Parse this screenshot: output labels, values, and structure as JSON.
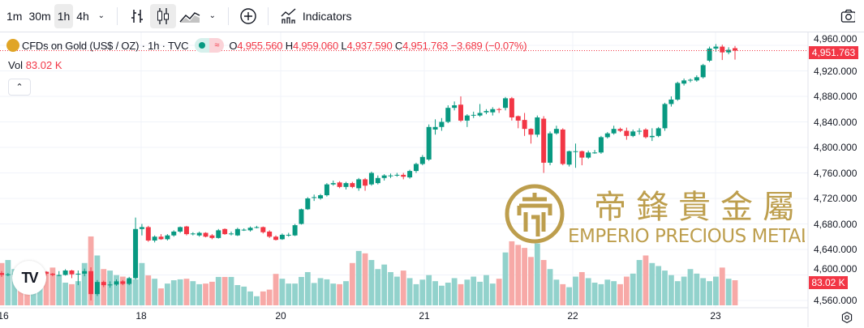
{
  "toolbar": {
    "intervals": [
      "1m",
      "30m",
      "1h",
      "4h"
    ],
    "active_interval": "1h",
    "indicators_label": "Indicators"
  },
  "legend": {
    "symbol": "CFDs on Gold (US$ / OZ) · 1h · TVC",
    "o_label": "O",
    "open": "4,955.560",
    "h_label": "H",
    "high": "4,959.060",
    "l_label": "L",
    "low": "4,937.590",
    "c_label": "C",
    "close": "4,951.763",
    "change": "−3.689 (−0.07%)"
  },
  "volume": {
    "label": "Vol",
    "value": "83.02 K"
  },
  "price_tag": "4,951.763",
  "volume_tag": "83.02 K",
  "y_axis": [
    "4,960.000",
    "4,920.000",
    "4,880.000",
    "4,840.000",
    "4,800.000",
    "4,760.000",
    "4,720.000",
    "4,680.000",
    "4,640.000",
    "4,600.000",
    "4,560.000"
  ],
  "x_axis": [
    "16",
    "18",
    "20",
    "21",
    "22",
    "23"
  ],
  "watermark": {
    "cn": "帝鋒貴金屬",
    "en": "EMPERIO PRECIOUS METALS"
  },
  "colors": {
    "up": "#089981",
    "down": "#f23645",
    "vol_up": "#92d2cc",
    "vol_down": "#f7a9a7",
    "gold": "#b8963e"
  },
  "chart_data": {
    "type": "candlestick",
    "title": "CFDs on Gold (US$ / OZ) · 1h · TVC",
    "ylim": [
      4552,
      4968
    ],
    "candles_ohlc": [
      [
        4603,
        4606,
        4597,
        4600
      ],
      [
        4600,
        4603,
        4598,
        4601
      ],
      [
        4601,
        4604,
        4599,
        4602
      ],
      [
        4602,
        4604,
        4597,
        4600
      ],
      [
        4600,
        4602,
        4595,
        4598
      ],
      [
        4598,
        4606,
        4597,
        4603
      ],
      [
        4603,
        4608,
        4601,
        4605
      ],
      [
        4605,
        4606,
        4599,
        4602
      ],
      [
        4602,
        4603,
        4598,
        4600
      ],
      [
        4600,
        4606,
        4598,
        4600
      ],
      [
        4600,
        4609,
        4599,
        4607
      ],
      [
        4607,
        4608,
        4595,
        4601
      ],
      [
        4601,
        4607,
        4584,
        4602
      ],
      [
        4602,
        4610,
        4598,
        4606
      ],
      [
        4606,
        4612,
        4560,
        4570
      ],
      [
        4570,
        4592,
        4567,
        4589
      ],
      [
        4589,
        4591,
        4581,
        4584
      ],
      [
        4584,
        4590,
        4580,
        4585
      ],
      [
        4585,
        4593,
        4583,
        4590
      ],
      [
        4590,
        4592,
        4584,
        4586
      ],
      [
        4586,
        4597,
        4584,
        4595
      ],
      [
        4595,
        4690,
        4593,
        4672
      ],
      [
        4672,
        4680,
        4662,
        4675
      ],
      [
        4675,
        4677,
        4652,
        4654
      ],
      [
        4654,
        4662,
        4651,
        4660
      ],
      [
        4660,
        4664,
        4655,
        4656
      ],
      [
        4656,
        4664,
        4654,
        4662
      ],
      [
        4662,
        4670,
        4660,
        4668
      ],
      [
        4668,
        4676,
        4666,
        4675
      ],
      [
        4676,
        4677,
        4662,
        4664
      ],
      [
        4664,
        4667,
        4662,
        4665
      ],
      [
        4662,
        4668,
        4660,
        4666
      ],
      [
        4666,
        4667,
        4659,
        4660
      ],
      [
        4662,
        4664,
        4656,
        4658
      ],
      [
        4658,
        4672,
        4657,
        4670
      ],
      [
        4672,
        4673,
        4663,
        4664
      ],
      [
        4664,
        4668,
        4662,
        4665
      ],
      [
        4662,
        4674,
        4661,
        4672
      ],
      [
        4670,
        4673,
        4669,
        4671
      ],
      [
        4670,
        4676,
        4668,
        4674
      ],
      [
        4674,
        4677,
        4673,
        4675
      ],
      [
        4675,
        4676,
        4665,
        4667
      ],
      [
        4668,
        4670,
        4658,
        4660
      ],
      [
        4660,
        4662,
        4654,
        4655
      ],
      [
        4656,
        4665,
        4655,
        4663
      ],
      [
        4663,
        4666,
        4660,
        4663
      ],
      [
        4662,
        4680,
        4661,
        4678
      ],
      [
        4680,
        4704,
        4679,
        4703
      ],
      [
        4703,
        4722,
        4702,
        4720
      ],
      [
        4722,
        4726,
        4716,
        4722
      ],
      [
        4720,
        4727,
        4718,
        4725
      ],
      [
        4725,
        4744,
        4723,
        4742
      ],
      [
        4742,
        4748,
        4740,
        4744
      ],
      [
        4745,
        4747,
        4736,
        4738
      ],
      [
        4738,
        4746,
        4734,
        4744
      ],
      [
        4744,
        4746,
        4736,
        4738
      ],
      [
        4736,
        4752,
        4732,
        4750
      ],
      [
        4750,
        4752,
        4732,
        4740
      ],
      [
        4742,
        4762,
        4740,
        4760
      ],
      [
        4744,
        4756,
        4742,
        4752
      ],
      [
        4752,
        4758,
        4748,
        4756
      ],
      [
        4756,
        4759,
        4752,
        4756
      ],
      [
        4756,
        4760,
        4754,
        4757
      ],
      [
        4757,
        4760,
        4750,
        4754
      ],
      [
        4753,
        4765,
        4751,
        4763
      ],
      [
        4763,
        4776,
        4760,
        4774
      ],
      [
        4774,
        4788,
        4772,
        4785
      ],
      [
        4781,
        4836,
        4779,
        4832
      ],
      [
        4828,
        4844,
        4820,
        4832
      ],
      [
        4832,
        4846,
        4826,
        4840
      ],
      [
        4840,
        4866,
        4838,
        4862
      ],
      [
        4862,
        4872,
        4858,
        4866
      ],
      [
        4867,
        4880,
        4840,
        4842
      ],
      [
        4842,
        4852,
        4832,
        4850
      ],
      [
        4851,
        4856,
        4846,
        4851
      ],
      [
        4850,
        4868,
        4848,
        4854
      ],
      [
        4855,
        4860,
        4852,
        4857
      ],
      [
        4855,
        4863,
        4850,
        4860
      ],
      [
        4860,
        4862,
        4854,
        4859
      ],
      [
        4862,
        4879,
        4858,
        4877
      ],
      [
        4877,
        4879,
        4842,
        4847
      ],
      [
        4849,
        4850,
        4830,
        4842
      ],
      [
        4843,
        4854,
        4818,
        4829
      ],
      [
        4829,
        4830,
        4806,
        4820
      ],
      [
        4820,
        4850,
        4816,
        4847
      ],
      [
        4845,
        4849,
        4760,
        4776
      ],
      [
        4776,
        4825,
        4772,
        4822
      ],
      [
        4822,
        4834,
        4820,
        4829
      ],
      [
        4828,
        4830,
        4772,
        4774
      ],
      [
        4773,
        4795,
        4770,
        4794
      ],
      [
        4794,
        4806,
        4768,
        4794
      ],
      [
        4794,
        4795,
        4772,
        4784
      ],
      [
        4784,
        4795,
        4782,
        4792
      ],
      [
        4792,
        4796,
        4790,
        4792
      ],
      [
        4792,
        4818,
        4790,
        4816
      ],
      [
        4816,
        4824,
        4814,
        4822
      ],
      [
        4822,
        4834,
        4820,
        4829
      ],
      [
        4829,
        4831,
        4824,
        4826
      ],
      [
        4826,
        4831,
        4812,
        4818
      ],
      [
        4818,
        4828,
        4816,
        4825
      ],
      [
        4826,
        4830,
        4820,
        4826
      ],
      [
        4828,
        4830,
        4814,
        4816
      ],
      [
        4816,
        4830,
        4810,
        4818
      ],
      [
        4818,
        4832,
        4816,
        4830
      ],
      [
        4830,
        4870,
        4826,
        4868
      ],
      [
        4868,
        4880,
        4864,
        4875
      ],
      [
        4875,
        4903,
        4873,
        4901
      ],
      [
        4900,
        4908,
        4897,
        4905
      ],
      [
        4905,
        4908,
        4902,
        4906
      ],
      [
        4905,
        4913,
        4903,
        4910
      ],
      [
        4910,
        4931,
        4908,
        4929
      ],
      [
        4936,
        4958,
        4934,
        4955
      ],
      [
        4955,
        4962,
        4950,
        4958
      ],
      [
        4958,
        4961,
        4937,
        4949
      ],
      [
        4949,
        4957,
        4946,
        4953
      ],
      [
        4955.56,
        4959.06,
        4937.59,
        4951.763
      ]
    ],
    "volumes_k": [
      140,
      150,
      120,
      100,
      90,
      85,
      95,
      110,
      125,
      100,
      75,
      70,
      80,
      140,
      228,
      165,
      120,
      115,
      100,
      95,
      85,
      86,
      140,
      99,
      88,
      56,
      72,
      83,
      86,
      88,
      80,
      70,
      72,
      78,
      94,
      94,
      94,
      67,
      62,
      46,
      30,
      46,
      52,
      104,
      88,
      72,
      72,
      94,
      110,
      74,
      90,
      86,
      72,
      70,
      80,
      140,
      180,
      172,
      150,
      120,
      135,
      110,
      95,
      115,
      90,
      70,
      85,
      100,
      80,
      65,
      75,
      90,
      70,
      85,
      95,
      78,
      100,
      72,
      88,
      175,
      212,
      200,
      190,
      160,
      205,
      150,
      120,
      85,
      70,
      60,
      95,
      110,
      90,
      75,
      70,
      85,
      80,
      70,
      95,
      105,
      150,
      165,
      140,
      130,
      115,
      100,
      80,
      95,
      120,
      105,
      90,
      80,
      95,
      125,
      88,
      83.02
    ],
    "x_ticks": [
      "16",
      "18",
      "20",
      "21",
      "22",
      "23"
    ],
    "y_ticks": [
      4960,
      4920,
      4880,
      4840,
      4800,
      4760,
      4720,
      4680,
      4640,
      4600,
      4560
    ],
    "last_price": 4951.763,
    "grid": true
  }
}
